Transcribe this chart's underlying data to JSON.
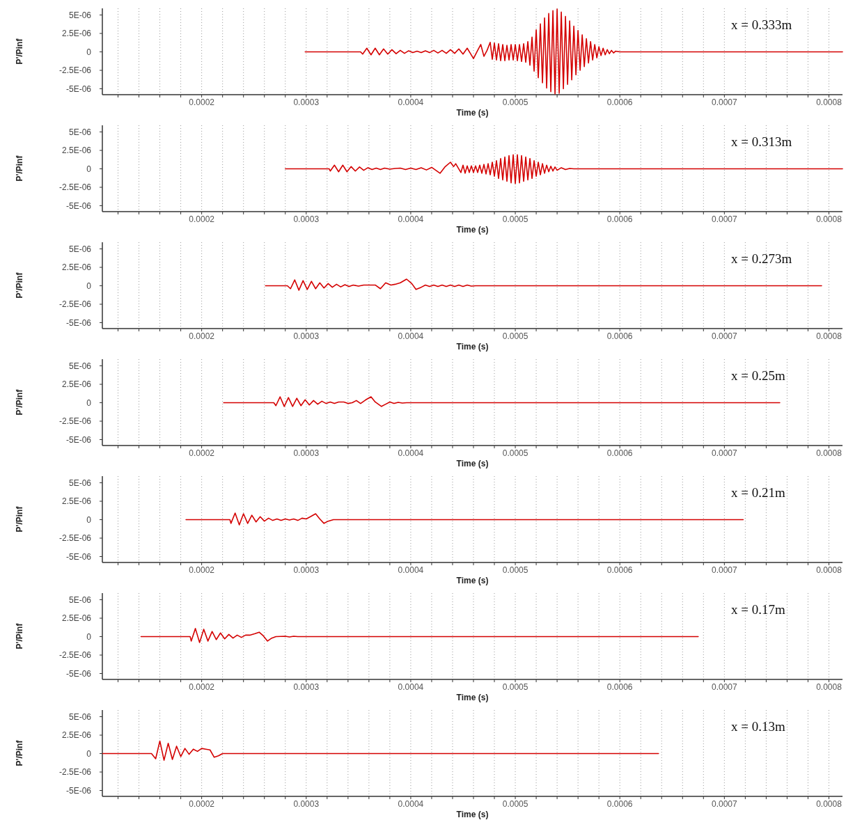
{
  "chart_data": [
    {
      "type": "line",
      "xlabel": "Time (s)",
      "ylabel": "P'/Pinf",
      "annotations": [
        "x = 0.333m"
      ],
      "grid": "x",
      "xlim": [
        0.000105,
        0.000813
      ],
      "ylim": [
        -5.8e-06,
        5.9e-06
      ],
      "xticks": [
        {
          "value": 0.00012,
          "label": null
        },
        {
          "value": 0.00014,
          "label": null
        },
        {
          "value": 0.00016,
          "label": null
        },
        {
          "value": 0.00018,
          "label": null
        },
        0.0002,
        {
          "value": 0.00022,
          "label": null
        },
        {
          "value": 0.00024,
          "label": null
        },
        {
          "value": 0.00026,
          "label": null
        },
        {
          "value": 0.00028,
          "label": null
        },
        0.0003,
        {
          "value": 0.00032,
          "label": null
        },
        {
          "value": 0.00034,
          "label": null
        },
        {
          "value": 0.00036,
          "label": null
        },
        {
          "value": 0.00038,
          "label": null
        },
        0.0004,
        {
          "value": 0.00042,
          "label": null
        },
        {
          "value": 0.00044,
          "label": null
        },
        {
          "value": 0.00046,
          "label": null
        },
        {
          "value": 0.00048,
          "label": null
        },
        0.0005,
        {
          "value": 0.00052,
          "label": null
        },
        {
          "value": 0.00054,
          "label": null
        },
        {
          "value": 0.00056,
          "label": null
        },
        {
          "value": 0.00058,
          "label": null
        },
        0.0006,
        {
          "value": 0.00062,
          "label": null
        },
        {
          "value": 0.00064,
          "label": null
        },
        {
          "value": 0.00066,
          "label": null
        },
        {
          "value": 0.00068,
          "label": null
        },
        0.0007,
        {
          "value": 0.00072,
          "label": null
        },
        {
          "value": 0.00074,
          "label": null
        },
        {
          "value": 0.00076,
          "label": null
        },
        {
          "value": 0.00078,
          "label": null
        },
        0.0008
      ],
      "yticks": [
        {
          "value": 5e-06,
          "label": "5E-06"
        },
        {
          "value": 2.5e-06,
          "label": "2.5E-06"
        },
        {
          "value": 0,
          "label": "0"
        },
        {
          "value": -2.5e-06,
          "label": "-2.5E-06"
        },
        {
          "value": -5e-06,
          "label": "-5E-06"
        }
      ],
      "series": [
        {
          "color": "#d40000",
          "x": [
            0.000299,
            0.000352,
            0.000354,
            0.000358,
            0.000362,
            0.000366,
            0.00037,
            0.000374,
            0.000378,
            0.000382,
            0.000386,
            0.00039,
            0.000394,
            0.000398,
            0.000402,
            0.000406,
            0.00041,
            0.000414,
            0.000418,
            0.000422,
            0.000426,
            0.00043,
            0.000434,
            0.000438,
            0.000442,
            0.000446,
            0.00045,
            0.000454,
            0.000457,
            0.00046,
            0.000464,
            0.000467,
            0.00047,
            0.000473,
            0.000476,
            0.000478,
            0.00048,
            0.000482,
            0.000484,
            0.000486,
            0.000488,
            0.00049,
            0.000492,
            0.000494,
            0.000496,
            0.000498,
            0.0005,
            0.000502,
            0.000504,
            0.000506,
            0.000508,
            0.00051,
            0.000512,
            0.000514,
            0.000516,
            0.000518,
            0.00052,
            0.000522,
            0.000524,
            0.000526,
            0.000528,
            0.00053,
            0.000532,
            0.000534,
            0.000536,
            0.000538,
            0.00054,
            0.000542,
            0.000544,
            0.000546,
            0.000548,
            0.00055,
            0.000552,
            0.000554,
            0.000556,
            0.000558,
            0.00056,
            0.000562,
            0.000564,
            0.000566,
            0.000568,
            0.00057,
            0.000572,
            0.000574,
            0.000576,
            0.000578,
            0.00058,
            0.000582,
            0.000584,
            0.000586,
            0.000588,
            0.00059,
            0.000592,
            0.000594,
            0.000596,
            0.0006,
            0.000813
          ],
          "values": [
            0,
            0,
            -3e-07,
            5e-07,
            -4e-07,
            5e-07,
            -4e-07,
            4e-07,
            -3e-07,
            3e-07,
            -2.5e-07,
            2e-07,
            -2e-07,
            1.5e-07,
            -1e-07,
            1e-07,
            -1e-07,
            1.5e-07,
            -1e-07,
            2e-07,
            -1.5e-07,
            2e-07,
            -2e-07,
            3e-07,
            -2e-07,
            4e-07,
            -3e-07,
            5e-07,
            -2e-07,
            -9e-07,
            2e-07,
            1e-06,
            -6e-07,
            2e-07,
            1.3e-06,
            -1e-06,
            1.2e-06,
            -1.1e-06,
            1.1e-06,
            -1.2e-06,
            1e-06,
            -1.2e-06,
            9e-07,
            -1.1e-06,
            1e-06,
            -1.1e-06,
            1e-06,
            -1.2e-06,
            1e-06,
            -1.3e-06,
            1.1e-06,
            -1.4e-06,
            1.4e-06,
            -1.8e-06,
            2e-06,
            -2.6e-06,
            3e-06,
            -3.5e-06,
            3.8e-06,
            -4.2e-06,
            4.6e-06,
            -4.9e-06,
            5.2e-06,
            -5.4e-06,
            5.6e-06,
            -5.7e-06,
            5.8e-06,
            -5.6e-06,
            5.4e-06,
            -5e-06,
            4.8e-06,
            -4.4e-06,
            4.2e-06,
            -3.8e-06,
            3.5e-06,
            -3.1e-06,
            2.9e-06,
            -2.5e-06,
            2.3e-06,
            -2e-06,
            1.8e-06,
            -1.5e-06,
            1.4e-06,
            -1.1e-06,
            1e-06,
            -8e-07,
            7e-07,
            -5e-07,
            5e-07,
            -4e-07,
            3e-07,
            -2.5e-07,
            2e-07,
            -1.5e-07,
            1e-07,
            0,
            0
          ]
        }
      ]
    },
    {
      "type": "line",
      "xlabel": "Time (s)",
      "ylabel": "P'/Pinf",
      "annotations": [
        "x = 0.313m"
      ],
      "grid": "x",
      "xlim": [
        0.000105,
        0.000813
      ],
      "ylim": [
        -5.8e-06,
        5.9e-06
      ],
      "xticks": [
        {
          "value": 0.00012,
          "label": null
        },
        {
          "value": 0.00014,
          "label": null
        },
        {
          "value": 0.00016,
          "label": null
        },
        {
          "value": 0.00018,
          "label": null
        },
        0.0002,
        {
          "value": 0.00022,
          "label": null
        },
        {
          "value": 0.00024,
          "label": null
        },
        {
          "value": 0.00026,
          "label": null
        },
        {
          "value": 0.00028,
          "label": null
        },
        0.0003,
        {
          "value": 0.00032,
          "label": null
        },
        {
          "value": 0.00034,
          "label": null
        },
        {
          "value": 0.00036,
          "label": null
        },
        {
          "value": 0.00038,
          "label": null
        },
        0.0004,
        {
          "value": 0.00042,
          "label": null
        },
        {
          "value": 0.00044,
          "label": null
        },
        {
          "value": 0.00046,
          "label": null
        },
        {
          "value": 0.00048,
          "label": null
        },
        0.0005,
        {
          "value": 0.00052,
          "label": null
        },
        {
          "value": 0.00054,
          "label": null
        },
        {
          "value": 0.00056,
          "label": null
        },
        {
          "value": 0.00058,
          "label": null
        },
        0.0006,
        {
          "value": 0.00062,
          "label": null
        },
        {
          "value": 0.00064,
          "label": null
        },
        {
          "value": 0.00066,
          "label": null
        },
        {
          "value": 0.00068,
          "label": null
        },
        0.0007,
        {
          "value": 0.00072,
          "label": null
        },
        {
          "value": 0.00074,
          "label": null
        },
        {
          "value": 0.00076,
          "label": null
        },
        {
          "value": 0.00078,
          "label": null
        },
        0.0008
      ],
      "yticks": [
        {
          "value": 5e-06,
          "label": "5E-06"
        },
        {
          "value": 2.5e-06,
          "label": "2.5E-06"
        },
        {
          "value": 0,
          "label": "0"
        },
        {
          "value": -2.5e-06,
          "label": "-2.5E-06"
        },
        {
          "value": -5e-06,
          "label": "-5E-06"
        }
      ],
      "series": [
        {
          "color": "#d40000",
          "x": [
            0.00028,
            0.000322,
            0.000323,
            0.000327,
            0.000331,
            0.000335,
            0.000339,
            0.000343,
            0.000347,
            0.000351,
            0.000355,
            0.000359,
            0.000363,
            0.000367,
            0.000371,
            0.000375,
            0.00038,
            0.000385,
            0.00039,
            0.000395,
            0.0004,
            0.000405,
            0.00041,
            0.000415,
            0.00042,
            0.000424,
            0.000428,
            0.000433,
            0.000438,
            0.000441,
            0.000443,
            0.000448,
            0.00045,
            0.000452,
            0.000454,
            0.000456,
            0.000458,
            0.00046,
            0.000462,
            0.000464,
            0.000466,
            0.000468,
            0.00047,
            0.000472,
            0.000474,
            0.000476,
            0.000478,
            0.00048,
            0.000482,
            0.000484,
            0.000486,
            0.000488,
            0.00049,
            0.000492,
            0.000494,
            0.000496,
            0.000498,
            0.0005,
            0.000502,
            0.000504,
            0.000506,
            0.000508,
            0.00051,
            0.000512,
            0.000514,
            0.000516,
            0.000518,
            0.00052,
            0.000522,
            0.000524,
            0.000526,
            0.000528,
            0.00053,
            0.000532,
            0.000534,
            0.000536,
            0.000538,
            0.00054,
            0.000544,
            0.000548,
            0.000552,
            0.000556,
            0.000813
          ],
          "values": [
            0,
            0,
            -3e-07,
            5e-07,
            -4e-07,
            5e-07,
            -4e-07,
            3e-07,
            -3e-07,
            2.5e-07,
            -2e-07,
            1.5e-07,
            -1e-07,
            1e-07,
            -1e-07,
            1e-07,
            -5e-08,
            5e-08,
            1e-07,
            -1e-07,
            1e-07,
            -1e-07,
            1.5e-07,
            -1.5e-07,
            2e-07,
            -2e-07,
            -6e-07,
            3e-07,
            9e-07,
            3e-07,
            7e-07,
            -5e-07,
            5e-07,
            -6e-07,
            4e-07,
            -5e-07,
            4e-07,
            -5e-07,
            4e-07,
            -5e-07,
            5e-07,
            -6e-07,
            6e-07,
            -7e-07,
            7e-07,
            -8e-07,
            9e-07,
            -1e-06,
            1.1e-06,
            -1.3e-06,
            1.4e-06,
            -1.5e-06,
            1.6e-06,
            -1.7e-06,
            1.8e-06,
            -1.9e-06,
            1.9e-06,
            -2e-06,
            1.9e-06,
            -1.9e-06,
            1.8e-06,
            -1.7e-06,
            1.6e-06,
            -1.5e-06,
            1.4e-06,
            -1.3e-06,
            1.1e-06,
            -1e-06,
            9e-07,
            -8e-07,
            7e-07,
            -6e-07,
            5e-07,
            -4e-07,
            3.5e-07,
            -3e-07,
            2.5e-07,
            -2e-07,
            1.5e-07,
            -1e-07,
            5e-08,
            0,
            0
          ]
        }
      ]
    },
    {
      "type": "line",
      "xlabel": "Time (s)",
      "ylabel": "P'/Pinf",
      "annotations": [
        "x = 0.273m"
      ],
      "grid": "x",
      "xlim": [
        0.000105,
        0.000813
      ],
      "ylim": [
        -5.8e-06,
        5.9e-06
      ],
      "xticks": [
        {
          "value": 0.00012,
          "label": null
        },
        {
          "value": 0.00014,
          "label": null
        },
        {
          "value": 0.00016,
          "label": null
        },
        {
          "value": 0.00018,
          "label": null
        },
        0.0002,
        {
          "value": 0.00022,
          "label": null
        },
        {
          "value": 0.00024,
          "label": null
        },
        {
          "value": 0.00026,
          "label": null
        },
        {
          "value": 0.00028,
          "label": null
        },
        0.0003,
        {
          "value": 0.00032,
          "label": null
        },
        {
          "value": 0.00034,
          "label": null
        },
        {
          "value": 0.00036,
          "label": null
        },
        {
          "value": 0.00038,
          "label": null
        },
        0.0004,
        {
          "value": 0.00042,
          "label": null
        },
        {
          "value": 0.00044,
          "label": null
        },
        {
          "value": 0.00046,
          "label": null
        },
        {
          "value": 0.00048,
          "label": null
        },
        0.0005,
        {
          "value": 0.00052,
          "label": null
        },
        {
          "value": 0.00054,
          "label": null
        },
        {
          "value": 0.00056,
          "label": null
        },
        {
          "value": 0.00058,
          "label": null
        },
        0.0006,
        {
          "value": 0.00062,
          "label": null
        },
        {
          "value": 0.00064,
          "label": null
        },
        {
          "value": 0.00066,
          "label": null
        },
        {
          "value": 0.00068,
          "label": null
        },
        0.0007,
        {
          "value": 0.00072,
          "label": null
        },
        {
          "value": 0.00074,
          "label": null
        },
        {
          "value": 0.00076,
          "label": null
        },
        {
          "value": 0.00078,
          "label": null
        },
        0.0008
      ],
      "yticks": [
        {
          "value": 5e-06,
          "label": "5E-06"
        },
        {
          "value": 2.5e-06,
          "label": "2.5E-06"
        },
        {
          "value": 0,
          "label": "0"
        },
        {
          "value": -2.5e-06,
          "label": "-2.5E-06"
        },
        {
          "value": -5e-06,
          "label": "-5E-06"
        }
      ],
      "series": [
        {
          "color": "#d40000",
          "x": [
            0.000261,
            0.000282,
            0.000285,
            0.000289,
            0.000293,
            0.000297,
            0.000301,
            0.000305,
            0.000309,
            0.000313,
            0.000317,
            0.000321,
            0.000325,
            0.000329,
            0.000333,
            0.000337,
            0.000341,
            0.000345,
            0.00035,
            0.000355,
            0.00036,
            0.000366,
            0.000371,
            0.000376,
            0.000381,
            0.000385,
            0.00039,
            0.000396,
            0.000401,
            0.000405,
            0.00041,
            0.000414,
            0.000418,
            0.000422,
            0.000426,
            0.00043,
            0.000434,
            0.000438,
            0.000442,
            0.000446,
            0.00045,
            0.000454,
            0.000458,
            0.000462,
            0.000793
          ],
          "values": [
            0,
            0,
            -4e-07,
            8e-07,
            -6e-07,
            7e-07,
            -5e-07,
            6e-07,
            -4e-07,
            4e-07,
            -3e-07,
            3e-07,
            -2e-07,
            2e-07,
            -1.5e-07,
            1.5e-07,
            -1e-07,
            1e-07,
            -5e-08,
            1e-07,
            1e-07,
            1e-07,
            -4e-07,
            4e-07,
            1e-07,
            2e-07,
            4e-07,
            9e-07,
            3e-07,
            -5e-07,
            -2e-07,
            1e-07,
            -1e-07,
            1e-07,
            -1e-07,
            1e-07,
            -1e-07,
            1e-07,
            -1e-07,
            1e-07,
            -1e-07,
            1e-07,
            -5e-08,
            0,
            0
          ]
        }
      ]
    },
    {
      "type": "line",
      "xlabel": "Time (s)",
      "ylabel": "P'/Pinf",
      "annotations": [
        "x = 0.25m"
      ],
      "grid": "x",
      "xlim": [
        0.000105,
        0.000813
      ],
      "ylim": [
        -5.8e-06,
        5.9e-06
      ],
      "xticks": [
        {
          "value": 0.00012,
          "label": null
        },
        {
          "value": 0.00014,
          "label": null
        },
        {
          "value": 0.00016,
          "label": null
        },
        {
          "value": 0.00018,
          "label": null
        },
        0.0002,
        {
          "value": 0.00022,
          "label": null
        },
        {
          "value": 0.00024,
          "label": null
        },
        {
          "value": 0.00026,
          "label": null
        },
        {
          "value": 0.00028,
          "label": null
        },
        0.0003,
        {
          "value": 0.00032,
          "label": null
        },
        {
          "value": 0.00034,
          "label": null
        },
        {
          "value": 0.00036,
          "label": null
        },
        {
          "value": 0.00038,
          "label": null
        },
        0.0004,
        {
          "value": 0.00042,
          "label": null
        },
        {
          "value": 0.00044,
          "label": null
        },
        {
          "value": 0.00046,
          "label": null
        },
        {
          "value": 0.00048,
          "label": null
        },
        0.0005,
        {
          "value": 0.00052,
          "label": null
        },
        {
          "value": 0.00054,
          "label": null
        },
        {
          "value": 0.00056,
          "label": null
        },
        {
          "value": 0.00058,
          "label": null
        },
        0.0006,
        {
          "value": 0.00062,
          "label": null
        },
        {
          "value": 0.00064,
          "label": null
        },
        {
          "value": 0.00066,
          "label": null
        },
        {
          "value": 0.00068,
          "label": null
        },
        0.0007,
        {
          "value": 0.00072,
          "label": null
        },
        {
          "value": 0.00074,
          "label": null
        },
        {
          "value": 0.00076,
          "label": null
        },
        {
          "value": 0.00078,
          "label": null
        },
        0.0008
      ],
      "yticks": [
        {
          "value": 5e-06,
          "label": "5E-06"
        },
        {
          "value": 2.5e-06,
          "label": "2.5E-06"
        },
        {
          "value": 0,
          "label": "0"
        },
        {
          "value": -2.5e-06,
          "label": "-2.5E-06"
        },
        {
          "value": -5e-06,
          "label": "-5E-06"
        }
      ],
      "series": [
        {
          "color": "#d40000",
          "x": [
            0.000221,
            0.000269,
            0.000271,
            0.000275,
            0.000279,
            0.000283,
            0.000287,
            0.000291,
            0.000295,
            0.000299,
            0.000303,
            0.000307,
            0.000311,
            0.000315,
            0.000319,
            0.000323,
            0.000327,
            0.000331,
            0.000336,
            0.00034,
            0.000344,
            0.000348,
            0.000352,
            0.000357,
            0.000362,
            0.000366,
            0.000372,
            0.000376,
            0.00038,
            0.000384,
            0.000388,
            0.000392,
            0.000396,
            0.000753
          ],
          "values": [
            0,
            0,
            -4e-07,
            8e-07,
            -5e-07,
            7e-07,
            -5e-07,
            6e-07,
            -4e-07,
            4e-07,
            -3e-07,
            3e-07,
            -2e-07,
            2e-07,
            -1e-07,
            1e-07,
            -1e-07,
            1e-07,
            1e-07,
            -1e-07,
            0,
            3e-07,
            -1e-07,
            4e-07,
            8e-07,
            1e-07,
            -5e-07,
            -2e-07,
            1e-07,
            -1e-07,
            5e-08,
            -5e-08,
            0,
            0
          ]
        }
      ]
    },
    {
      "type": "line",
      "xlabel": "Time (s)",
      "ylabel": "P'/Pinf",
      "annotations": [
        "x = 0.21m"
      ],
      "grid": "x",
      "xlim": [
        0.000105,
        0.000813
      ],
      "ylim": [
        -5.8e-06,
        5.9e-06
      ],
      "xticks": [
        {
          "value": 0.00012,
          "label": null
        },
        {
          "value": 0.00014,
          "label": null
        },
        {
          "value": 0.00016,
          "label": null
        },
        {
          "value": 0.00018,
          "label": null
        },
        0.0002,
        {
          "value": 0.00022,
          "label": null
        },
        {
          "value": 0.00024,
          "label": null
        },
        {
          "value": 0.00026,
          "label": null
        },
        {
          "value": 0.00028,
          "label": null
        },
        0.0003,
        {
          "value": 0.00032,
          "label": null
        },
        {
          "value": 0.00034,
          "label": null
        },
        {
          "value": 0.00036,
          "label": null
        },
        {
          "value": 0.00038,
          "label": null
        },
        0.0004,
        {
          "value": 0.00042,
          "label": null
        },
        {
          "value": 0.00044,
          "label": null
        },
        {
          "value": 0.00046,
          "label": null
        },
        {
          "value": 0.00048,
          "label": null
        },
        0.0005,
        {
          "value": 0.00052,
          "label": null
        },
        {
          "value": 0.00054,
          "label": null
        },
        {
          "value": 0.00056,
          "label": null
        },
        {
          "value": 0.00058,
          "label": null
        },
        0.0006,
        {
          "value": 0.00062,
          "label": null
        },
        {
          "value": 0.00064,
          "label": null
        },
        {
          "value": 0.00066,
          "label": null
        },
        {
          "value": 0.00068,
          "label": null
        },
        0.0007,
        {
          "value": 0.00072,
          "label": null
        },
        {
          "value": 0.00074,
          "label": null
        },
        {
          "value": 0.00076,
          "label": null
        },
        {
          "value": 0.00078,
          "label": null
        },
        0.0008
      ],
      "yticks": [
        {
          "value": 5e-06,
          "label": "5E-06"
        },
        {
          "value": 2.5e-06,
          "label": "2.5E-06"
        },
        {
          "value": 0,
          "label": "0"
        },
        {
          "value": -2.5e-06,
          "label": "-2.5E-06"
        },
        {
          "value": -5e-06,
          "label": "-5E-06"
        }
      ],
      "series": [
        {
          "color": "#d40000",
          "x": [
            0.000185,
            0.000227,
            0.000228,
            0.000232,
            0.000236,
            0.00024,
            0.000244,
            0.000248,
            0.000252,
            0.000256,
            0.00026,
            0.000264,
            0.000268,
            0.000272,
            0.000276,
            0.00028,
            0.000284,
            0.000288,
            0.000292,
            0.000296,
            0.0003,
            0.000304,
            0.000309,
            0.000313,
            0.000317,
            0.000321,
            0.000326,
            0.000718
          ],
          "values": [
            0,
            0,
            -5e-07,
            9e-07,
            -7e-07,
            8e-07,
            -5e-07,
            6e-07,
            -3e-07,
            4e-07,
            -2e-07,
            2e-07,
            -1e-07,
            1e-07,
            -1e-07,
            1e-07,
            -5e-08,
            1e-07,
            -1e-07,
            2e-07,
            1e-07,
            4e-07,
            8e-07,
            1e-07,
            -5e-07,
            -2e-07,
            0,
            0
          ]
        }
      ]
    },
    {
      "type": "line",
      "xlabel": "Time (s)",
      "ylabel": "P'/Pinf",
      "annotations": [
        "x = 0.17m"
      ],
      "grid": "x",
      "xlim": [
        0.000105,
        0.000813
      ],
      "ylim": [
        -5.8e-06,
        5.9e-06
      ],
      "xticks": [
        {
          "value": 0.00012,
          "label": null
        },
        {
          "value": 0.00014,
          "label": null
        },
        {
          "value": 0.00016,
          "label": null
        },
        {
          "value": 0.00018,
          "label": null
        },
        0.0002,
        {
          "value": 0.00022,
          "label": null
        },
        {
          "value": 0.00024,
          "label": null
        },
        {
          "value": 0.00026,
          "label": null
        },
        {
          "value": 0.00028,
          "label": null
        },
        0.0003,
        {
          "value": 0.00032,
          "label": null
        },
        {
          "value": 0.00034,
          "label": null
        },
        {
          "value": 0.00036,
          "label": null
        },
        {
          "value": 0.00038,
          "label": null
        },
        0.0004,
        {
          "value": 0.00042,
          "label": null
        },
        {
          "value": 0.00044,
          "label": null
        },
        {
          "value": 0.00046,
          "label": null
        },
        {
          "value": 0.00048,
          "label": null
        },
        0.0005,
        {
          "value": 0.00052,
          "label": null
        },
        {
          "value": 0.00054,
          "label": null
        },
        {
          "value": 0.00056,
          "label": null
        },
        {
          "value": 0.00058,
          "label": null
        },
        0.0006,
        {
          "value": 0.00062,
          "label": null
        },
        {
          "value": 0.00064,
          "label": null
        },
        {
          "value": 0.00066,
          "label": null
        },
        {
          "value": 0.00068,
          "label": null
        },
        0.0007,
        {
          "value": 0.00072,
          "label": null
        },
        {
          "value": 0.00074,
          "label": null
        },
        {
          "value": 0.00076,
          "label": null
        },
        {
          "value": 0.00078,
          "label": null
        },
        0.0008
      ],
      "yticks": [
        {
          "value": 5e-06,
          "label": "5E-06"
        },
        {
          "value": 2.5e-06,
          "label": "2.5E-06"
        },
        {
          "value": 0,
          "label": "0"
        },
        {
          "value": -2.5e-06,
          "label": "-2.5E-06"
        },
        {
          "value": -5e-06,
          "label": "-5E-06"
        }
      ],
      "series": [
        {
          "color": "#d40000",
          "x": [
            0.000142,
            0.000189,
            0.00019,
            0.000194,
            0.000198,
            0.000202,
            0.000206,
            0.00021,
            0.000214,
            0.000218,
            0.000222,
            0.000226,
            0.00023,
            0.000234,
            0.000238,
            0.000242,
            0.000246,
            0.000251,
            0.000255,
            0.000259,
            0.000263,
            0.000267,
            0.000271,
            0.00028,
            0.000284,
            0.000288,
            0.000292,
            0.000675
          ],
          "values": [
            0,
            0,
            -6e-07,
            1.1e-06,
            -8e-07,
            1e-06,
            -6e-07,
            7e-07,
            -4e-07,
            5e-07,
            -3e-07,
            3e-07,
            -2e-07,
            2e-07,
            -1e-07,
            2e-07,
            2e-07,
            4e-07,
            6e-07,
            1e-07,
            -6e-07,
            -2e-07,
            0,
            5e-08,
            -5e-08,
            5e-08,
            0,
            0
          ]
        }
      ]
    },
    {
      "type": "line",
      "xlabel": "Time (s)",
      "ylabel": "P'/Pinf",
      "annotations": [
        "x = 0.13m"
      ],
      "grid": "x",
      "xlim": [
        0.000105,
        0.000813
      ],
      "ylim": [
        -5.8e-06,
        5.9e-06
      ],
      "xticks": [
        {
          "value": 0.00012,
          "label": null
        },
        {
          "value": 0.00014,
          "label": null
        },
        {
          "value": 0.00016,
          "label": null
        },
        {
          "value": 0.00018,
          "label": null
        },
        0.0002,
        {
          "value": 0.00022,
          "label": null
        },
        {
          "value": 0.00024,
          "label": null
        },
        {
          "value": 0.00026,
          "label": null
        },
        {
          "value": 0.00028,
          "label": null
        },
        0.0003,
        {
          "value": 0.00032,
          "label": null
        },
        {
          "value": 0.00034,
          "label": null
        },
        {
          "value": 0.00036,
          "label": null
        },
        {
          "value": 0.00038,
          "label": null
        },
        0.0004,
        {
          "value": 0.00042,
          "label": null
        },
        {
          "value": 0.00044,
          "label": null
        },
        {
          "value": 0.00046,
          "label": null
        },
        {
          "value": 0.00048,
          "label": null
        },
        0.0005,
        {
          "value": 0.00052,
          "label": null
        },
        {
          "value": 0.00054,
          "label": null
        },
        {
          "value": 0.00056,
          "label": null
        },
        {
          "value": 0.00058,
          "label": null
        },
        0.0006,
        {
          "value": 0.00062,
          "label": null
        },
        {
          "value": 0.00064,
          "label": null
        },
        {
          "value": 0.00066,
          "label": null
        },
        {
          "value": 0.00068,
          "label": null
        },
        0.0007,
        {
          "value": 0.00072,
          "label": null
        },
        {
          "value": 0.00074,
          "label": null
        },
        {
          "value": 0.00076,
          "label": null
        },
        {
          "value": 0.00078,
          "label": null
        },
        0.0008
      ],
      "yticks": [
        {
          "value": 5e-06,
          "label": "5E-06"
        },
        {
          "value": 2.5e-06,
          "label": "2.5E-06"
        },
        {
          "value": 0,
          "label": "0"
        },
        {
          "value": -2.5e-06,
          "label": "-2.5E-06"
        },
        {
          "value": -5e-06,
          "label": "-5E-06"
        }
      ],
      "series": [
        {
          "color": "#d40000",
          "x": [
            0.0001055,
            0.000152,
            0.000156,
            0.00016,
            0.000164,
            0.000168,
            0.000172,
            0.000176,
            0.00018,
            0.000184,
            0.000188,
            0.000192,
            0.000196,
            0.0002,
            0.000204,
            0.000208,
            0.000212,
            0.000216,
            0.00022,
            0.000637
          ],
          "values": [
            0,
            0,
            -7e-07,
            1.7e-06,
            -9e-07,
            1.4e-06,
            -8e-07,
            1e-06,
            -4e-07,
            7e-07,
            -1e-07,
            6e-07,
            3e-07,
            7e-07,
            6e-07,
            5e-07,
            -5e-07,
            -3e-07,
            0,
            0
          ]
        }
      ]
    }
  ]
}
